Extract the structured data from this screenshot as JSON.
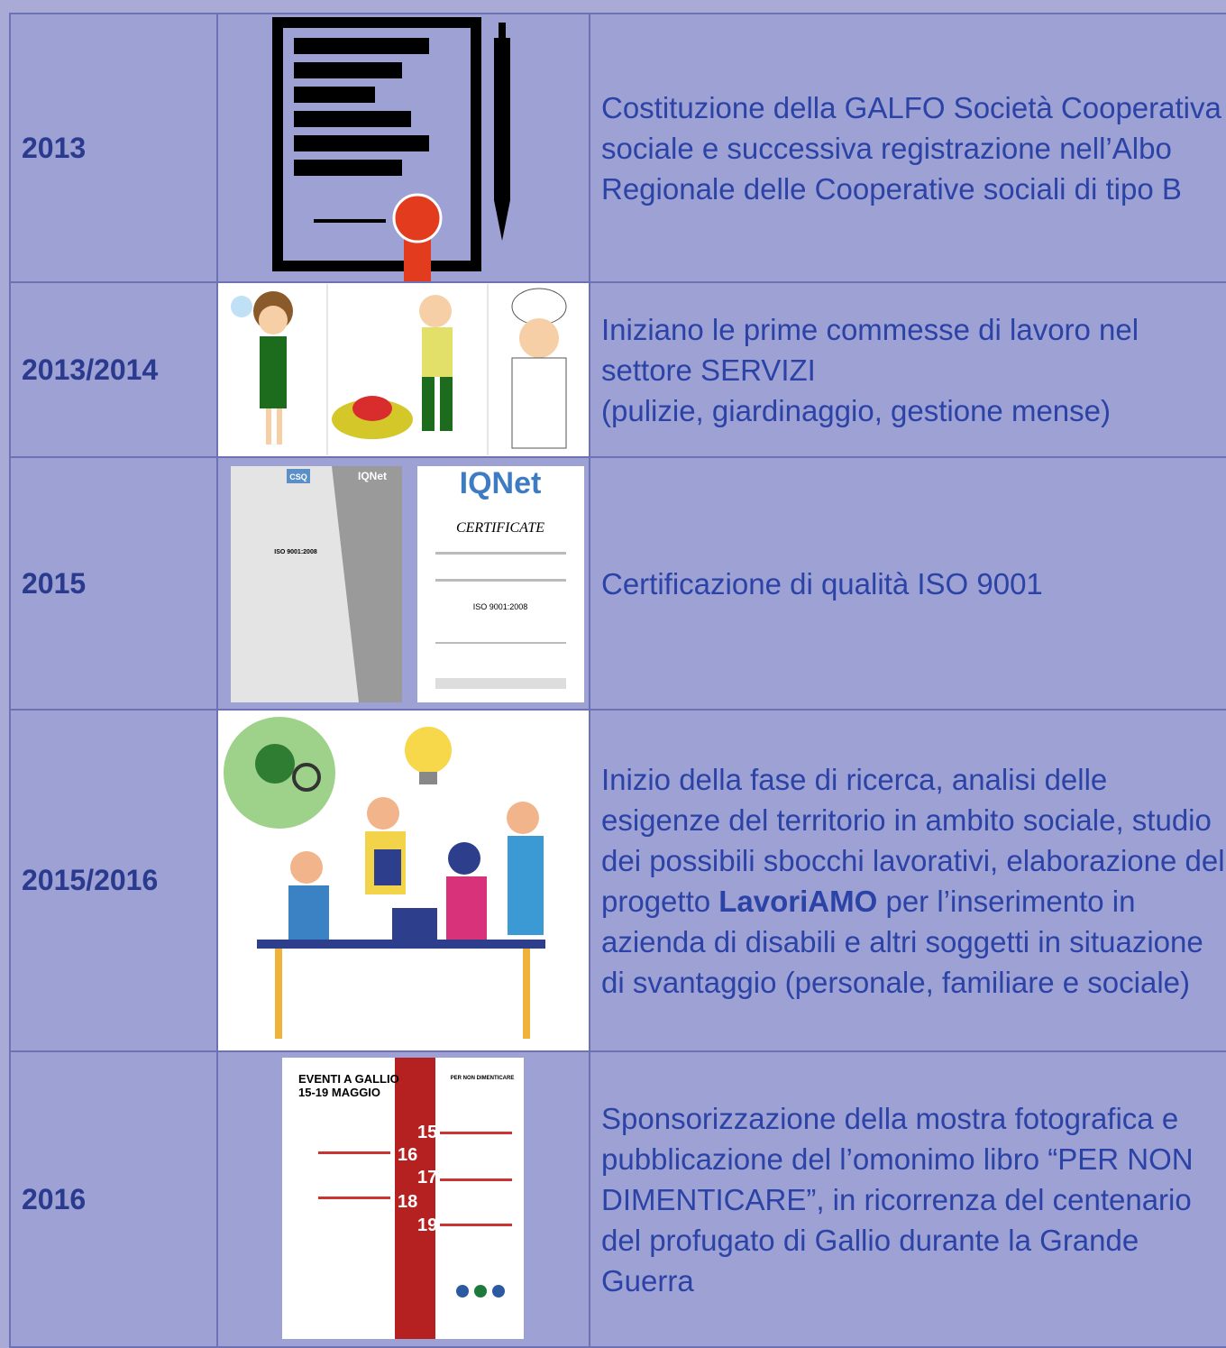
{
  "rows": [
    {
      "year": "2013",
      "description": [
        {
          "text": "Costituzione della GALFO Società Cooperativa sociale e successiva registrazione nell’Albo Regionale delle Cooperative sociali di tipo B",
          "bold": false,
          "break": false
        }
      ]
    },
    {
      "year": "2013/2014",
      "description": [
        {
          "text": "Iniziano le prime commesse di lavoro nel settore SERVIZI",
          "bold": false,
          "break": false
        },
        {
          "text": "(pulizie, giardinaggio, gestione mense)",
          "bold": false,
          "break": true
        }
      ]
    },
    {
      "year": "2015",
      "description": [
        {
          "text": "Certificazione di qualità ISO 9001",
          "bold": false,
          "break": false
        }
      ],
      "images": {
        "left": [
          "CSQ",
          "IQNet",
          "ISO 9001:2008"
        ],
        "right": [
          "IQNet",
          "CERTIFICATE",
          "ISO 9001:2008"
        ]
      }
    },
    {
      "year": "2015/2016",
      "description": [
        {
          "text": "Inizio della fase di ricerca, analisi delle esigenze del territorio in ambito sociale, studio dei possibili sbocchi lavorativi, elaborazione del progetto ",
          "bold": false,
          "break": false
        },
        {
          "text": "LavoriAMO",
          "bold": true,
          "break": false
        },
        {
          "text": " per l’inserimento in azienda di disabili e altri soggetti in situazione di svantaggio (personale, familiare e sociale)",
          "bold": false,
          "break": false
        }
      ]
    },
    {
      "year": "2016",
      "description": [
        {
          "text": "Sponsorizzazione della mostra fotografica e pubblicazione del l’omonimo libro “PER NON DIMENTICARE”, in ricorrenza del centenario del profugato di Gallio durante la Grande Guerra",
          "bold": false,
          "break": false
        }
      ],
      "poster": {
        "title": "EVENTI A GALLIO",
        "dates": "15-19 MAGGIO",
        "header": "PER NON DIMENTICARE",
        "days": [
          "15",
          "16",
          "17",
          "18",
          "19"
        ]
      }
    }
  ]
}
